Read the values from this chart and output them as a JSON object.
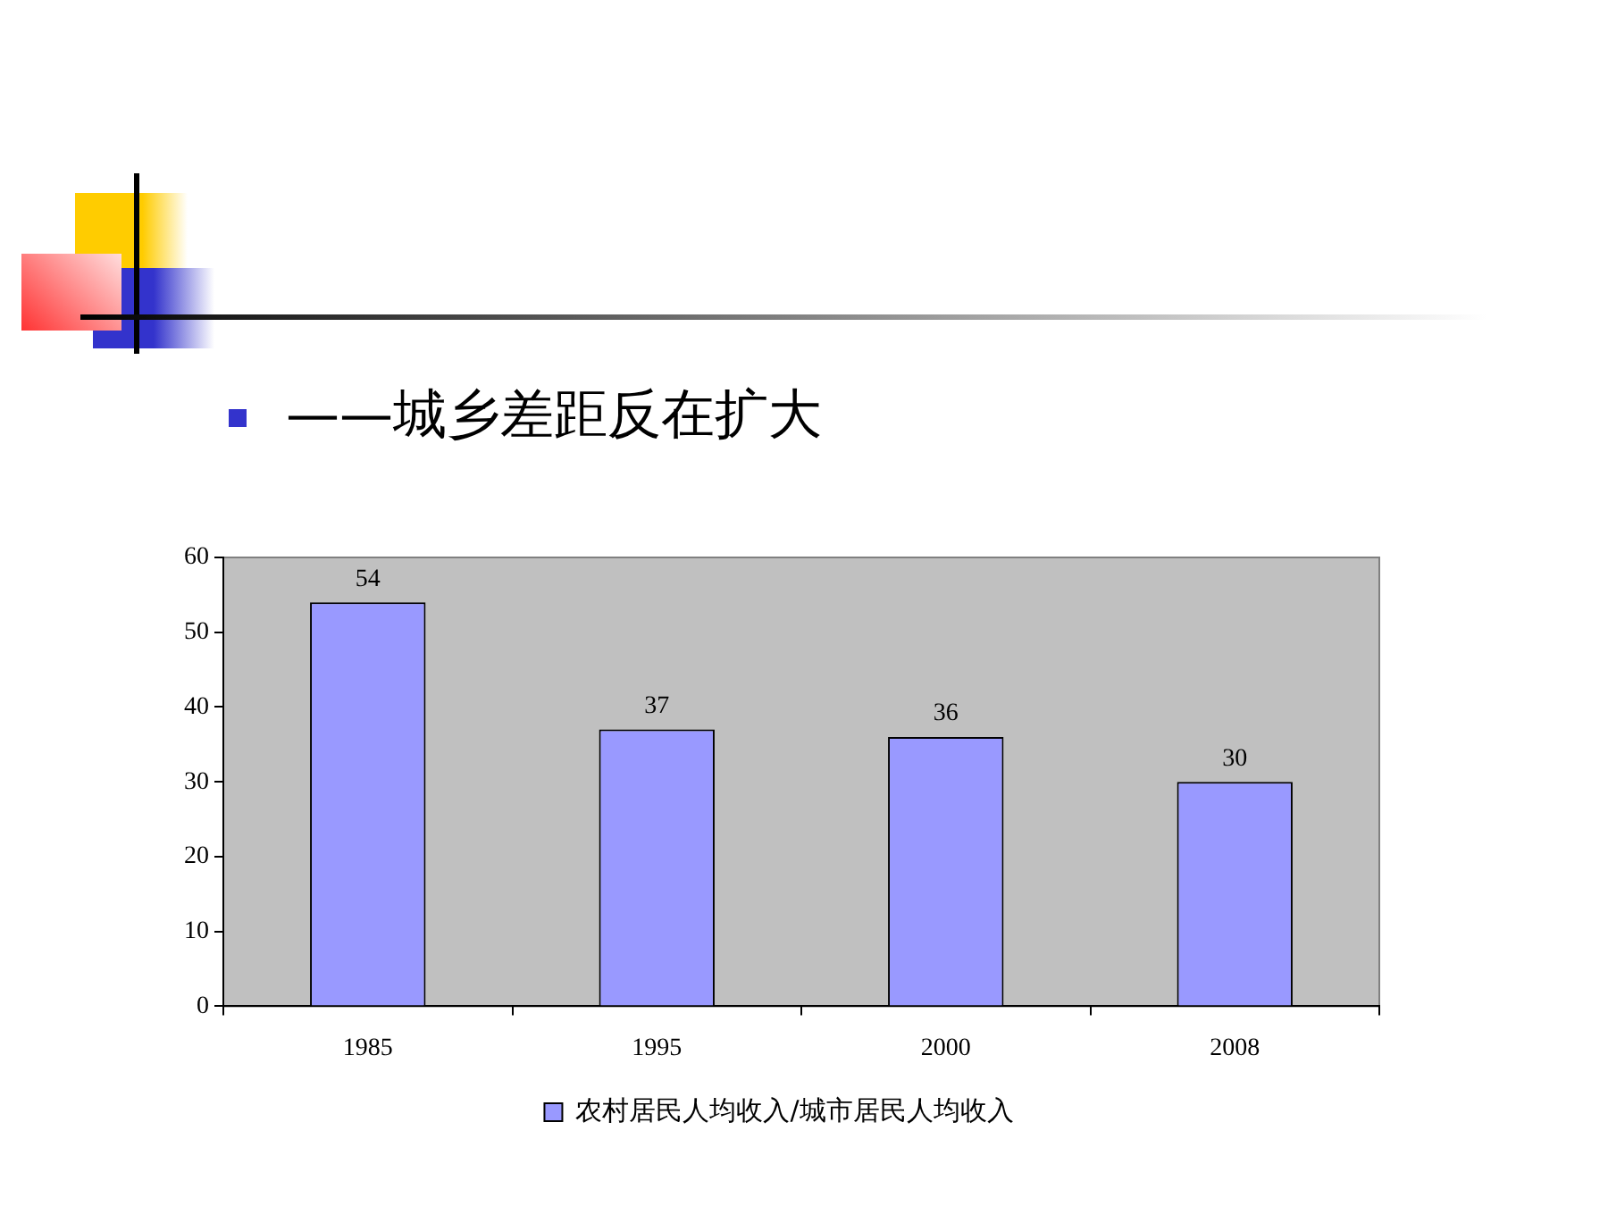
{
  "chart_data": {
    "type": "bar",
    "title": "——城乡差距反在扩大",
    "categories": [
      "1985",
      "1995",
      "2000",
      "2008"
    ],
    "series": [
      {
        "name": "农村居民人均收入/城市居民人均收入",
        "color": "#9999ff",
        "values": [
          54,
          37,
          36,
          30
        ]
      }
    ],
    "ylim": [
      0,
      60
    ],
    "yticks": [
      0,
      10,
      20,
      30,
      40,
      50,
      60
    ],
    "grid": false,
    "legend": "bottom",
    "data_labels": true
  }
}
